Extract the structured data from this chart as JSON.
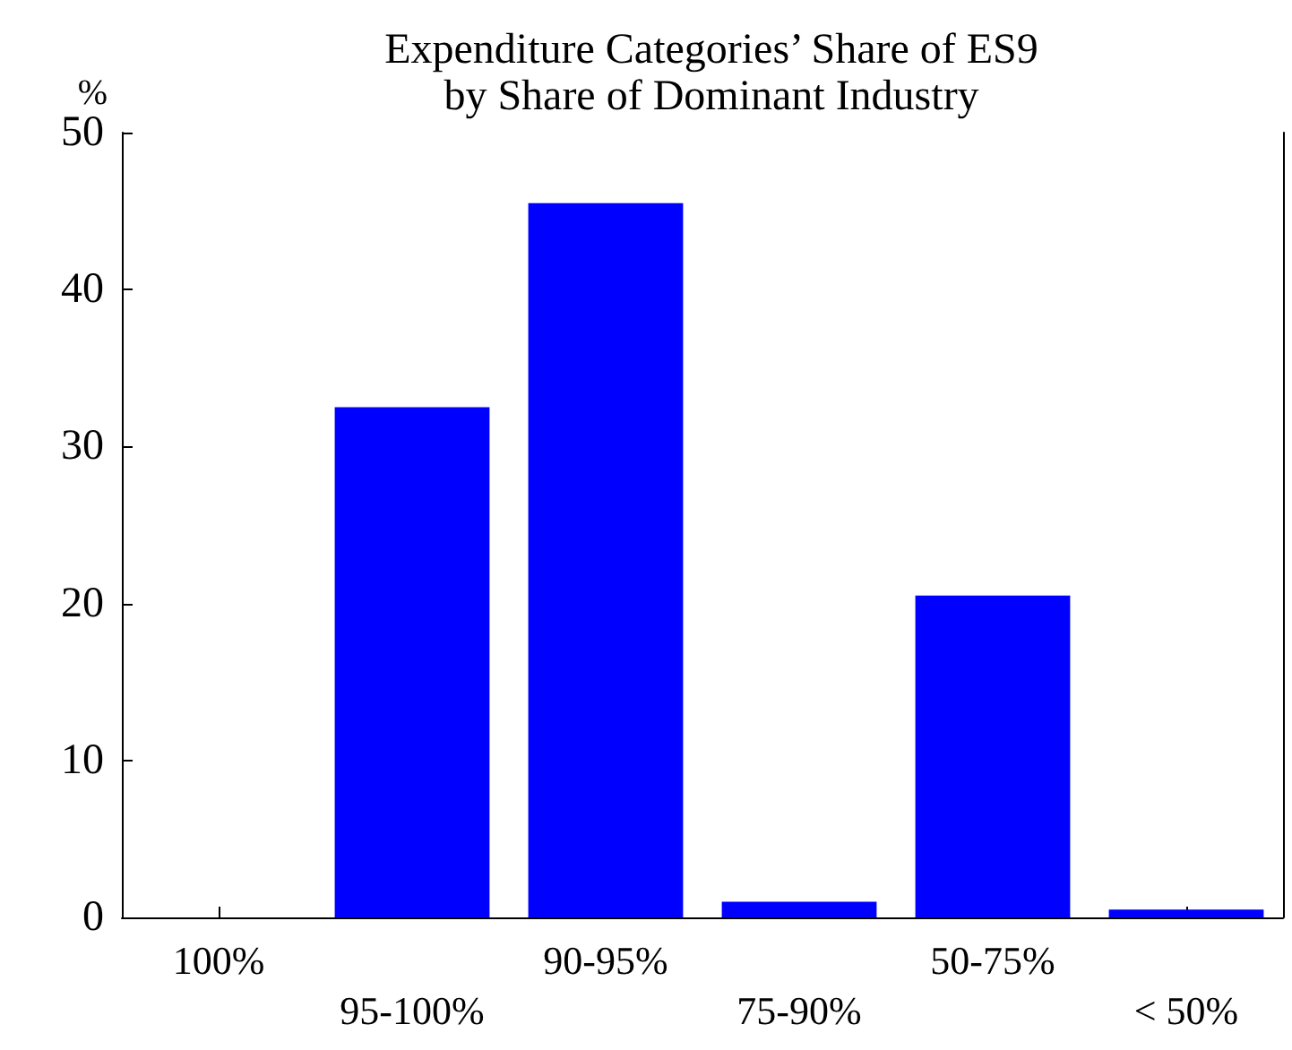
{
  "chart_data": {
    "type": "bar",
    "title": "Expenditure Categories’ Share of ES9\nby Share of Dominant Industry",
    "ylabel": "%",
    "categories": [
      "100%",
      "95-100%",
      "90-95%",
      "75-90%",
      "50-75%",
      "< 50%"
    ],
    "values": [
      0,
      32.5,
      45.5,
      1.0,
      20.5,
      0.5
    ],
    "color": "#0000ff",
    "ylim": [
      0,
      50
    ],
    "yticks": [
      0,
      10,
      20,
      30,
      40,
      50
    ],
    "grid": false
  }
}
